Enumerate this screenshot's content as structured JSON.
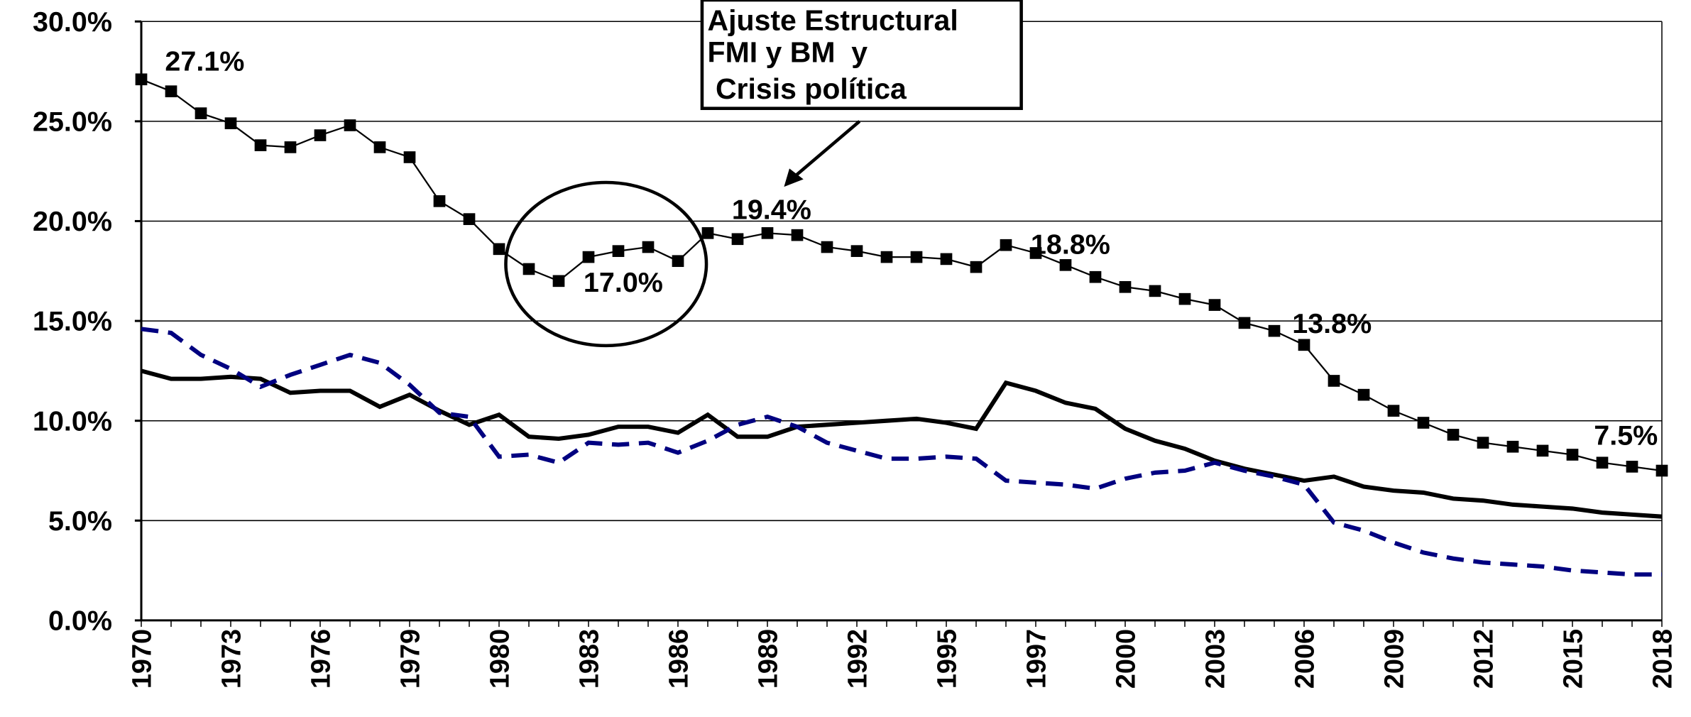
{
  "chart_data": {
    "type": "line",
    "categories": [
      "1970",
      null,
      null,
      "1973",
      null,
      null,
      "1976",
      null,
      null,
      "1979",
      null,
      null,
      "1980",
      null,
      null,
      "1983",
      null,
      null,
      "1986",
      null,
      null,
      "1989",
      null,
      null,
      "1992",
      null,
      null,
      "1995",
      null,
      null,
      "1997",
      null,
      null,
      "2000",
      null,
      null,
      "2003",
      null,
      null,
      "2006",
      null,
      null,
      "2009",
      null,
      null,
      "2012",
      null,
      null,
      "2015",
      null,
      null,
      "2018"
    ],
    "series": [
      {
        "color": "#000000",
        "style": "line-square",
        "values": [
          27.1,
          26.5,
          25.4,
          24.9,
          23.8,
          23.7,
          24.3,
          24.8,
          23.7,
          23.2,
          21.0,
          20.1,
          18.6,
          17.6,
          17.0,
          18.2,
          18.5,
          18.7,
          18.0,
          19.4,
          19.1,
          19.4,
          19.3,
          18.7,
          18.5,
          18.2,
          18.2,
          18.1,
          17.7,
          18.8,
          18.4,
          17.8,
          17.2,
          16.7,
          16.5,
          16.1,
          15.8,
          14.9,
          14.5,
          13.8,
          12.0,
          11.3,
          10.5,
          9.9,
          9.3,
          8.9,
          8.7,
          8.5,
          8.3,
          7.9,
          7.7,
          7.5
        ],
        "value_labels": [
          "27.1%",
          null,
          null,
          null,
          null,
          null,
          null,
          null,
          null,
          null,
          null,
          null,
          null,
          null,
          "17.0%",
          null,
          null,
          null,
          null,
          null,
          null,
          "19.4%",
          null,
          null,
          null,
          null,
          null,
          null,
          null,
          "18.8%",
          null,
          null,
          null,
          null,
          null,
          null,
          null,
          null,
          null,
          "13.8%",
          null,
          null,
          null,
          null,
          null,
          null,
          null,
          null,
          null,
          null,
          null,
          "7.5%"
        ]
      },
      {
        "color": "#000000",
        "style": "solid",
        "values": [
          12.5,
          12.1,
          12.1,
          12.2,
          12.1,
          11.4,
          11.5,
          11.5,
          10.7,
          11.3,
          10.5,
          9.8,
          10.3,
          9.2,
          9.1,
          9.3,
          9.7,
          9.7,
          9.4,
          10.3,
          9.2,
          9.2,
          9.7,
          9.8,
          9.9,
          10.0,
          10.1,
          9.9,
          9.6,
          11.9,
          11.5,
          10.9,
          10.6,
          9.6,
          9.0,
          8.6,
          8.0,
          7.6,
          7.3,
          7.0,
          7.2,
          6.7,
          6.5,
          6.4,
          6.1,
          6.0,
          5.8,
          5.7,
          5.6,
          5.4,
          5.3,
          5.2
        ]
      },
      {
        "color": "#000080",
        "style": "dashed",
        "values": [
          14.6,
          14.4,
          13.3,
          12.6,
          11.7,
          12.3,
          12.8,
          13.3,
          12.9,
          11.8,
          10.4,
          10.2,
          8.2,
          8.3,
          7.9,
          8.9,
          8.8,
          8.9,
          8.4,
          9.0,
          9.8,
          10.2,
          9.7,
          8.9,
          8.5,
          8.1,
          8.1,
          8.2,
          8.1,
          7.0,
          6.9,
          6.8,
          6.6,
          7.1,
          7.4,
          7.5,
          7.9,
          7.5,
          7.2,
          6.8,
          4.9,
          4.5,
          3.9,
          3.4,
          3.1,
          2.9,
          2.8,
          2.7,
          2.5,
          2.4,
          2.3,
          2.3
        ]
      }
    ],
    "ylim": [
      0,
      30
    ],
    "yticks": [
      {
        "value": 0,
        "label": "0.0%"
      },
      {
        "value": 5,
        "label": "5.0%"
      },
      {
        "value": 10,
        "label": "10.0%"
      },
      {
        "value": 15,
        "label": "15.0%"
      },
      {
        "value": 20,
        "label": "20.0%"
      },
      {
        "value": 25,
        "label": "25.0%"
      },
      {
        "value": 30,
        "label": "30.0%"
      }
    ],
    "grid": true,
    "annotation": [
      "Ajuste Estructural",
      "FMI y BM  y",
      " Crisis política"
    ]
  }
}
